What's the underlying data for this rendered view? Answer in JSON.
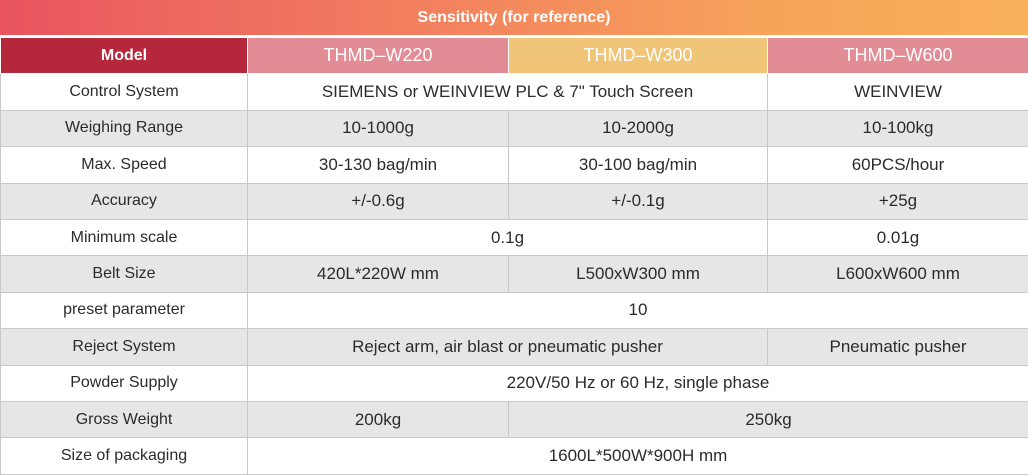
{
  "title": "Sensitivity (for reference)",
  "header": {
    "model": "Model",
    "w220": "THMD–W220",
    "w300": "THMD–W300",
    "w600": "THMD–W600"
  },
  "colors": {
    "title_gradient_start": "#e9545f",
    "title_gradient_end": "#f9b15a",
    "model_header": "#b5283c",
    "w220_header": "#e28c95",
    "w300_header": "#f1c577",
    "w600_header": "#e28c95",
    "row_shade": "#e6e6e6"
  },
  "rows": {
    "control_system": {
      "label": "Control System",
      "w220_w300": "SIEMENS or WEINVIEW PLC & 7\" Touch Screen",
      "w600": "WEINVIEW"
    },
    "weighing_range": {
      "label": "Weighing Range",
      "w220": "10-1000g",
      "w300": "10-2000g",
      "w600": "10-100kg"
    },
    "max_speed": {
      "label": "Max. Speed",
      "w220": "30-130 bag/min",
      "w300": "30-100 bag/min",
      "w600": "60PCS/hour"
    },
    "accuracy": {
      "label": "Accuracy",
      "w220": "+/-0.6g",
      "w300": "+/-0.1g",
      "w600": "+25g"
    },
    "minimum_scale": {
      "label": "Minimum scale",
      "w220_w300": "0.1g",
      "w600": "0.01g"
    },
    "belt_size": {
      "label": "Belt Size",
      "w220": "420L*220W mm",
      "w300": "L500xW300 mm",
      "w600": "L600xW600 mm"
    },
    "preset_parameter": {
      "label": "preset parameter",
      "all": "10"
    },
    "reject_system": {
      "label": "Reject System",
      "w220_w300": "Reject arm, air blast or pneumatic pusher",
      "w600": "Pneumatic pusher"
    },
    "powder_supply": {
      "label": "Powder Supply",
      "all": "220V/50 Hz or 60 Hz, single phase"
    },
    "gross_weight": {
      "label": "Gross Weight",
      "w220": "200kg",
      "w300_w600": "250kg"
    },
    "size_of_packaging": {
      "label": "Size of packaging",
      "all": "1600L*500W*900H mm"
    }
  }
}
